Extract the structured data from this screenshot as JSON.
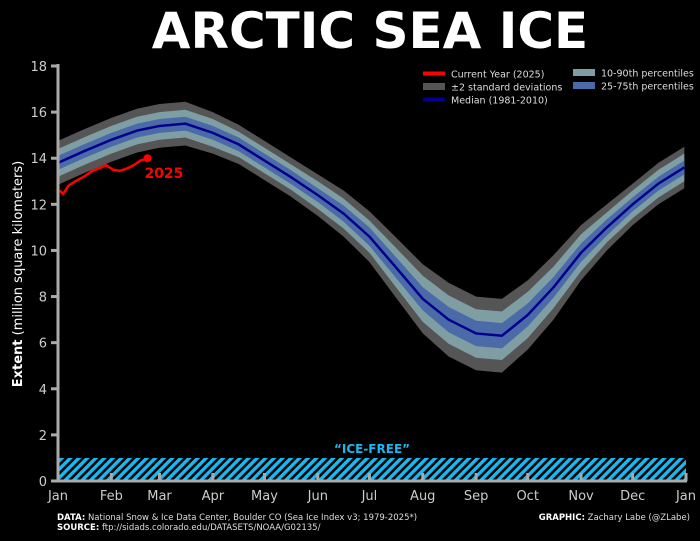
{
  "title": "ARCTIC SEA ICE",
  "footer": {
    "data_label": "DATA:",
    "data_text": "National Snow & Ice Data Center, Boulder CO (Sea Ice Index v3; 1979-2025*)",
    "source_label": "SOURCE:",
    "source_text": "ftp://sidads.colorado.edu/DATASETS/NOAA/G02135/",
    "graphic_label": "GRAPHIC:",
    "graphic_text": "Zachary Labe (@ZLabe)"
  },
  "chart_data": {
    "type": "line",
    "title": "ARCTIC SEA ICE",
    "ylabel_bold": "Extent",
    "ylabel_rest": " (million square kilometers)",
    "ylim": [
      0,
      18
    ],
    "yticks": [
      0,
      2,
      4,
      6,
      8,
      10,
      12,
      14,
      16,
      18
    ],
    "xticks": [
      "Jan",
      "Feb",
      "Mar",
      "Apr",
      "May",
      "Jun",
      "Jul",
      "Aug",
      "Sep",
      "Oct",
      "Nov",
      "Dec",
      "Jan"
    ],
    "xtick_days": [
      0,
      31,
      59,
      90,
      120,
      151,
      181,
      212,
      243,
      273,
      304,
      334,
      365
    ],
    "grid": false,
    "legend_placement": "top-right",
    "legend": [
      {
        "label": "Current Year (2025)",
        "color": "#ff0000"
      },
      {
        "label": "±2 standard deviations",
        "color": "#555555"
      },
      {
        "label": "Median (1981-2010)",
        "color": "#00008b"
      },
      {
        "label": "10-90th percentiles",
        "color": "#7f9ea3"
      },
      {
        "label": "25-75th percentiles",
        "color": "#4a6aa8"
      }
    ],
    "colors": {
      "current": "#ff0000",
      "sd": "#555555",
      "p10_90": "#7f9ea3",
      "p25_75": "#4a6aa8",
      "median": "#00008b",
      "ice_free": "#1ab8f0",
      "axis": "#aaaaaa"
    },
    "climatology_days": [
      0,
      15,
      31,
      46,
      59,
      74,
      90,
      105,
      120,
      135,
      151,
      166,
      181,
      196,
      212,
      227,
      243,
      258,
      273,
      288,
      304,
      319,
      334,
      349,
      364
    ],
    "median": [
      13.8,
      14.3,
      14.8,
      15.2,
      15.4,
      15.5,
      15.1,
      14.6,
      13.9,
      13.2,
      12.4,
      11.6,
      10.6,
      9.3,
      7.9,
      7.0,
      6.4,
      6.3,
      7.2,
      8.4,
      9.9,
      11.0,
      12.0,
      12.9,
      13.6
    ],
    "sd_lower": [
      12.85,
      13.35,
      13.85,
      14.25,
      14.45,
      14.55,
      14.2,
      13.75,
      13.05,
      12.35,
      11.5,
      10.6,
      9.5,
      8.0,
      6.4,
      5.4,
      4.8,
      4.7,
      5.7,
      7.0,
      8.7,
      10.0,
      11.1,
      12.0,
      12.7
    ],
    "sd_upper": [
      14.75,
      15.25,
      15.75,
      16.15,
      16.35,
      16.45,
      16.0,
      15.45,
      14.75,
      14.05,
      13.3,
      12.6,
      11.7,
      10.6,
      9.4,
      8.6,
      8.0,
      7.9,
      8.7,
      9.8,
      11.1,
      12.0,
      12.9,
      13.8,
      14.5
    ],
    "p10": [
      13.2,
      13.7,
      14.2,
      14.6,
      14.8,
      14.9,
      14.5,
      14.05,
      13.35,
      12.65,
      11.8,
      10.95,
      9.9,
      8.45,
      6.9,
      5.95,
      5.35,
      5.25,
      6.2,
      7.5,
      9.1,
      10.35,
      11.4,
      12.3,
      13.0
    ],
    "p90": [
      14.4,
      14.9,
      15.4,
      15.8,
      16.0,
      16.1,
      15.7,
      15.15,
      14.45,
      13.75,
      13.0,
      12.25,
      11.3,
      10.15,
      8.9,
      8.05,
      7.45,
      7.35,
      8.2,
      9.3,
      10.7,
      11.65,
      12.6,
      13.5,
      14.2
    ],
    "p25": [
      13.5,
      14.0,
      14.5,
      14.9,
      15.1,
      15.2,
      14.8,
      14.3,
      13.6,
      12.9,
      12.1,
      11.25,
      10.2,
      8.85,
      7.4,
      6.45,
      5.85,
      5.75,
      6.7,
      7.95,
      9.5,
      10.65,
      11.7,
      12.6,
      13.3
    ],
    "p75": [
      14.1,
      14.6,
      15.1,
      15.5,
      15.7,
      15.8,
      15.4,
      14.9,
      14.2,
      13.5,
      12.7,
      11.95,
      11.0,
      9.75,
      8.4,
      7.55,
      6.95,
      6.85,
      7.7,
      8.85,
      10.3,
      11.35,
      12.3,
      13.2,
      13.9
    ],
    "current_year": {
      "label": "2025",
      "days": [
        1,
        3,
        6,
        10,
        15,
        20,
        25,
        28,
        32,
        36,
        40,
        44,
        48,
        52
      ],
      "values": [
        12.6,
        12.45,
        12.8,
        13.0,
        13.2,
        13.45,
        13.6,
        13.7,
        13.5,
        13.45,
        13.55,
        13.7,
        13.9,
        14.0
      ]
    },
    "ice_free": {
      "label": "“ICE-FREE”",
      "threshold": 1
    }
  }
}
